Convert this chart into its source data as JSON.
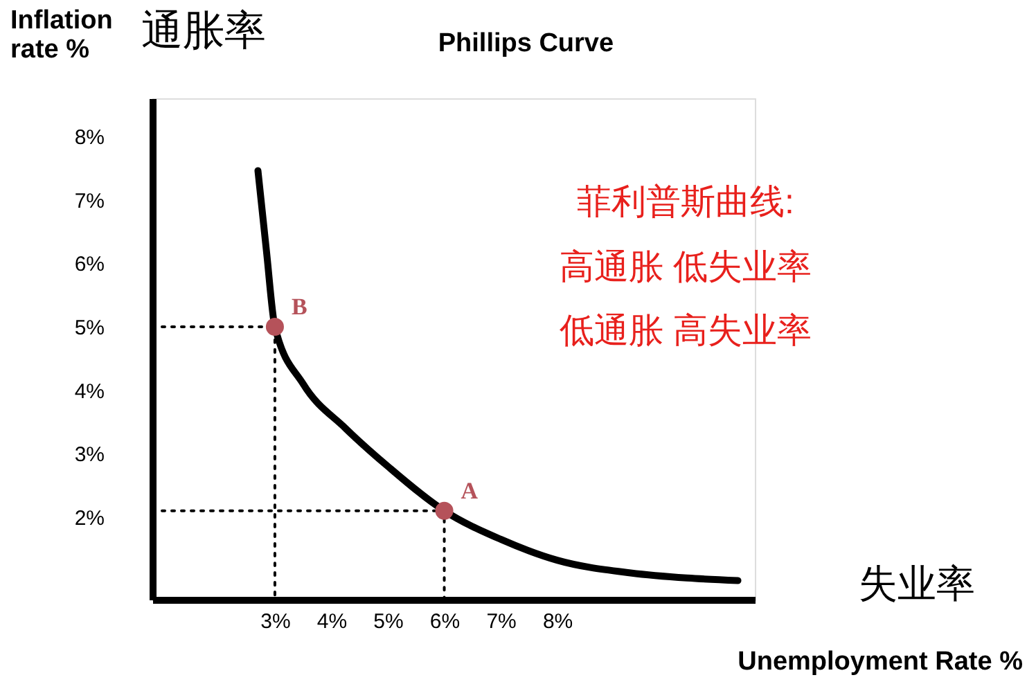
{
  "chart_data": {
    "type": "line",
    "title": "Phillips Curve",
    "xlabel": "Unemployment Rate %",
    "ylabel": "Inflation rate %",
    "xlim": [
      0.83,
      11.5
    ],
    "ylim": [
      0.7,
      8.6
    ],
    "xticks": [
      {
        "value": 3,
        "label": "3%"
      },
      {
        "value": 4,
        "label": "4%"
      },
      {
        "value": 5,
        "label": "5%"
      },
      {
        "value": 6,
        "label": "6%"
      },
      {
        "value": 7,
        "label": "7%"
      },
      {
        "value": 8,
        "label": "8%"
      }
    ],
    "yticks": [
      {
        "value": 2,
        "label": "2%"
      },
      {
        "value": 3,
        "label": "3%"
      },
      {
        "value": 4,
        "label": "4%"
      },
      {
        "value": 5,
        "label": "5%"
      },
      {
        "value": 6,
        "label": "6%"
      },
      {
        "value": 7,
        "label": "7%"
      },
      {
        "value": 8,
        "label": "8%"
      }
    ],
    "grid": false,
    "series": [
      {
        "color": "#000000",
        "line_style": "solid",
        "x": [
          2.7,
          2.85,
          3.0,
          3.5,
          4.25,
          5.0,
          6.0,
          7.0,
          8.0,
          9.3,
          10.3,
          11.2
        ],
        "values": [
          7.46,
          6.2,
          5.0,
          4.1,
          3.4,
          2.8,
          2.1,
          1.65,
          1.32,
          1.12,
          1.04,
          1.0
        ]
      },
      {
        "color": "#000000",
        "line_style": "dotted",
        "x": [
          0.83,
          3.0,
          3.0
        ],
        "values": [
          5.0,
          5.0,
          0.7
        ]
      },
      {
        "color": "#000000",
        "line_style": "dotted",
        "x": [
          0.83,
          6.0,
          6.0
        ],
        "values": [
          2.1,
          2.1,
          0.7
        ]
      },
      {
        "type": "scatter",
        "color": "#b5525a",
        "marker": "circle",
        "x": [
          3.0,
          6.0
        ],
        "values": [
          5.0,
          2.1
        ]
      }
    ],
    "annotations": [
      "通胀率",
      "失业率",
      "菲利普斯曲线:",
      "高通胀  低失业率",
      "低通胀  高失业率",
      {
        "text": "B",
        "x": 3.0,
        "y": 5.0
      },
      {
        "text": "A",
        "x": 6.0,
        "y": 2.1
      }
    ]
  }
}
